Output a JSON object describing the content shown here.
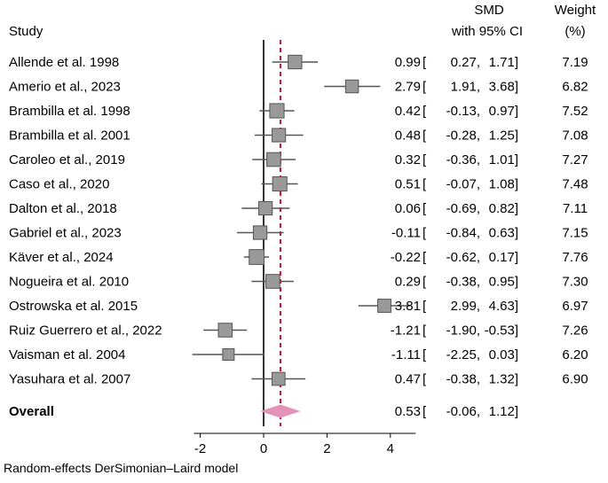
{
  "chart_data": {
    "type": "forest",
    "headers": {
      "study": "Study",
      "effect_line1": "SMD",
      "effect_line2": "with 95% CI",
      "weight_line1": "Weight",
      "weight_line2": "(%)"
    },
    "studies": [
      {
        "name": "Allende et al. 1998",
        "smd": 0.99,
        "lo": 0.27,
        "hi": 1.71,
        "lo_txt": "0.27",
        "weight": 7.19
      },
      {
        "name": "Amerio et al., 2023",
        "smd": 2.79,
        "lo": 1.91,
        "hi": 3.68,
        "lo_txt": "1.91",
        "weight": 6.82
      },
      {
        "name": "Brambilla et al. 1998",
        "smd": 0.42,
        "lo": -0.13,
        "hi": 0.97,
        "lo_txt": "-0.13",
        "weight": 7.52
      },
      {
        "name": "Brambilla et al. 2001",
        "smd": 0.48,
        "lo": -0.28,
        "hi": 1.25,
        "lo_txt": "-0.28",
        "weight": 7.08
      },
      {
        "name": "Caroleo et al., 2019",
        "smd": 0.32,
        "lo": -0.36,
        "hi": 1.01,
        "lo_txt": "-0.36",
        "weight": 7.27
      },
      {
        "name": "Caso et al., 2020",
        "smd": 0.51,
        "lo": -0.07,
        "hi": 1.08,
        "lo_txt": "-0.07",
        "weight": 7.48
      },
      {
        "name": "Dalton et al., 2018",
        "smd": 0.06,
        "lo": -0.69,
        "hi": 0.82,
        "lo_txt": "-0.69",
        "weight": 7.11
      },
      {
        "name": "Gabriel et al., 2023",
        "smd": -0.11,
        "lo": -0.84,
        "hi": 0.63,
        "lo_txt": "-0.84",
        "weight": 7.15
      },
      {
        "name": "Käver et al., 2024",
        "smd": -0.22,
        "lo": -0.62,
        "hi": 0.17,
        "lo_txt": "-0.62",
        "weight": 7.76
      },
      {
        "name": "Nogueira et al. 2010",
        "smd": 0.29,
        "lo": -0.38,
        "hi": 0.95,
        "lo_txt": "-0.38",
        "weight": 7.3
      },
      {
        "name": "Ostrowska et al. 2015",
        "smd": 3.81,
        "lo": 2.99,
        "hi": 4.63,
        "lo_txt": "2.99",
        "weight": 6.97
      },
      {
        "name": "Ruiz Guerrero et al., 2022",
        "smd": -1.21,
        "lo": -1.9,
        "hi": -0.53,
        "lo_txt": "-1.90",
        "weight": 7.26
      },
      {
        "name": "Vaisman et al. 2004",
        "smd": -1.11,
        "lo": -2.25,
        "hi": 0.03,
        "lo_txt": "-2.25",
        "weight": 6.2
      },
      {
        "name": "Yasuhara et al. 2007",
        "smd": 0.47,
        "lo": -0.38,
        "hi": 1.32,
        "lo_txt": "-0.38",
        "weight": 6.9
      }
    ],
    "overall": {
      "label": "Overall",
      "smd": 0.53,
      "lo": -0.06,
      "hi": 1.12,
      "lo_txt": "-0.06"
    },
    "x_axis": {
      "ticks": [
        -2,
        0,
        2,
        4
      ],
      "tick_labels": [
        "-2",
        "0",
        "2",
        "4"
      ],
      "range": [
        -2.2,
        4.8
      ]
    },
    "reference_line": 0,
    "overall_line": 0.53,
    "note": "Random-effects DerSimonian–Laird model",
    "colors": {
      "marker": "#999999",
      "marker_stroke": "#555555",
      "diamond": "#e592b8",
      "overall_line": "#c8102e",
      "ci_line": "#555555"
    }
  }
}
